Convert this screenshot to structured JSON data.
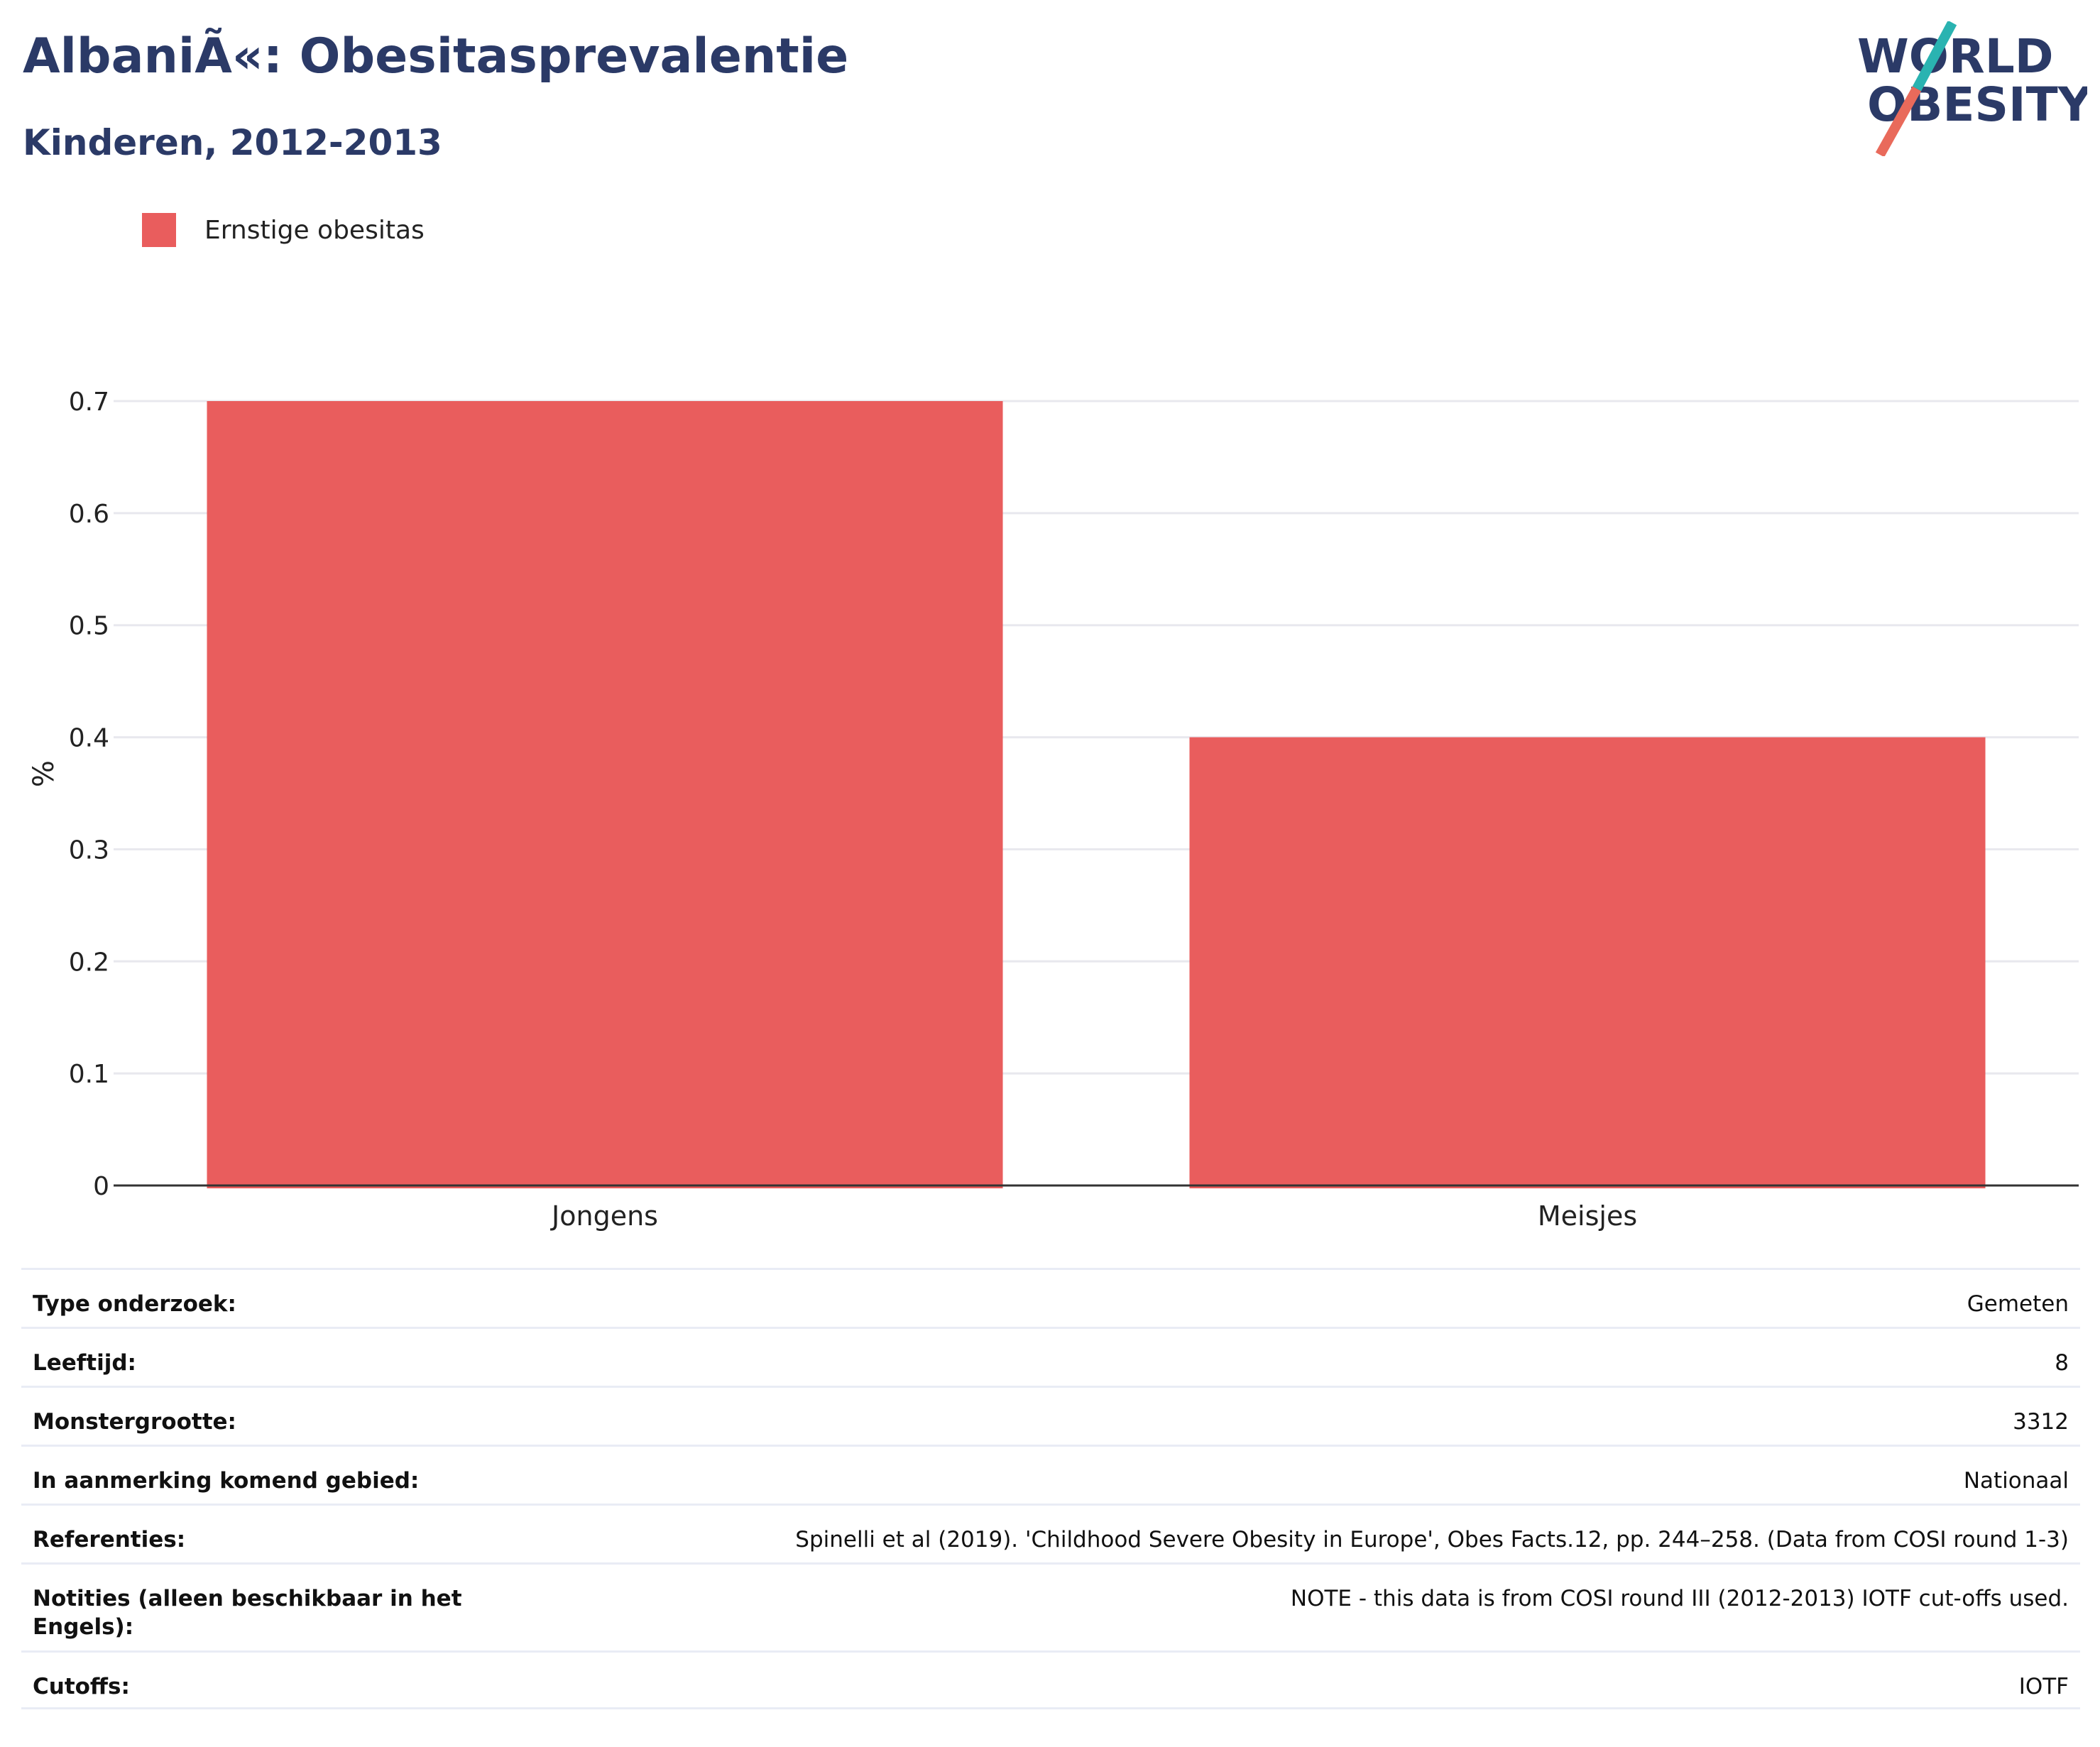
{
  "header": {
    "title": "AlbaniÃ«: Obesitasprevalentie",
    "subtitle": "Kinderen, 2012-2013"
  },
  "logo": {
    "line1": "WORLD",
    "line2": "OBESITY",
    "colors": {
      "text": "#2b3a67",
      "accent_teal": "#2ab3b1",
      "accent_red": "#e96a5b"
    }
  },
  "colors": {
    "bar": "#e95d5d",
    "grid": "#e8e8ee",
    "axis": "#333333",
    "text": "#2b3a67"
  },
  "chart_data": {
    "type": "bar",
    "categories": [
      "Jongens",
      "Meisjes"
    ],
    "series": [
      {
        "name": "Ernstige obesitas",
        "values": [
          0.7,
          0.4
        ]
      }
    ],
    "ylabel": "%",
    "xlabel": "",
    "ylim": [
      0,
      0.7
    ],
    "yticks": [
      0,
      0.1,
      0.2,
      0.3,
      0.4,
      0.5,
      0.6,
      0.7
    ],
    "grid": true,
    "legend_position": "top-left"
  },
  "meta": [
    {
      "label": "Type onderzoek:",
      "value": "Gemeten"
    },
    {
      "label": "Leeftijd:",
      "value": "8"
    },
    {
      "label": "Monstergrootte:",
      "value": "3312"
    },
    {
      "label": "In aanmerking komend gebied:",
      "value": "Nationaal"
    },
    {
      "label": "Referenties:",
      "value": "Spinelli et al (2019). 'Childhood Severe Obesity in Europe', Obes Facts.12, pp. 244–258. (Data from COSI round 1-3)"
    },
    {
      "label": "Notities (alleen beschikbaar in het Engels):",
      "value": "NOTE - this data is from COSI round III (2012-2013) IOTF cut-offs used."
    },
    {
      "label": "Cutoffs:",
      "value": "IOTF"
    }
  ]
}
